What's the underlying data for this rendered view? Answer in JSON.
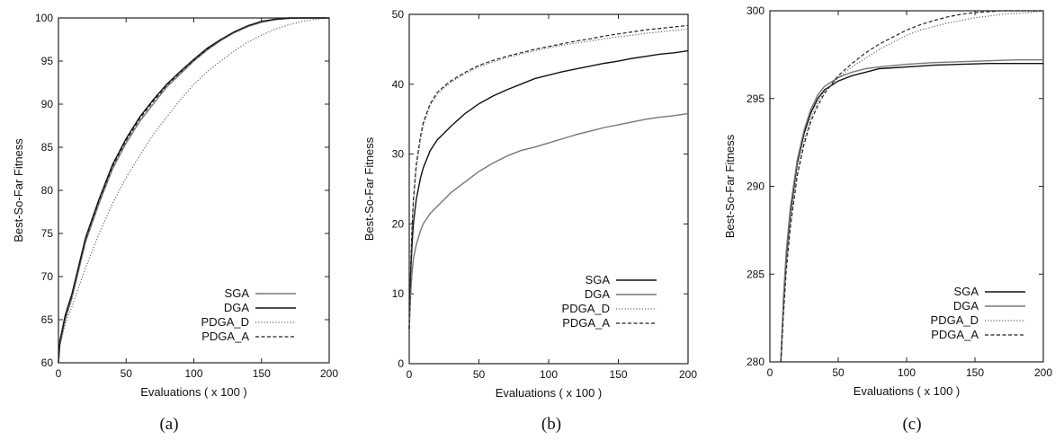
{
  "chart_data": [
    {
      "type": "line",
      "panel": "(a)",
      "xlabel": "Evaluations ( x 100 )",
      "ylabel": "Best-So-Far Fitness",
      "xlim": [
        0,
        200
      ],
      "ylim": [
        60,
        100
      ],
      "xticks": [
        0,
        50,
        100,
        150,
        200
      ],
      "yticks": [
        60,
        65,
        70,
        75,
        80,
        85,
        90,
        95,
        100
      ],
      "legend": "bottom-right",
      "series": [
        {
          "name": "SGA",
          "style": "solid",
          "color": "#777777",
          "x": [
            0,
            1,
            5,
            10,
            20,
            30,
            40,
            50,
            60,
            70,
            80,
            90,
            100,
            110,
            120,
            130,
            140,
            150,
            160,
            170,
            180,
            190,
            200
          ],
          "y": [
            60,
            62,
            65,
            67.5,
            74,
            78.5,
            82.5,
            85.5,
            88,
            90,
            92,
            93.5,
            95,
            96.3,
            97.4,
            98.3,
            99,
            99.5,
            99.8,
            99.95,
            100,
            100,
            100
          ]
        },
        {
          "name": "DGA",
          "style": "solid",
          "color": "#111111",
          "x": [
            0,
            1,
            5,
            10,
            20,
            30,
            40,
            50,
            60,
            70,
            80,
            90,
            100,
            110,
            120,
            130,
            140,
            150,
            160,
            170,
            180,
            190,
            200
          ],
          "y": [
            60,
            62.5,
            65.5,
            68,
            74.5,
            79,
            83,
            86,
            88.5,
            90.5,
            92.3,
            93.8,
            95.2,
            96.5,
            97.5,
            98.4,
            99.1,
            99.6,
            99.85,
            100,
            100,
            100,
            100
          ]
        },
        {
          "name": "PDGA_D",
          "style": "dotted",
          "color": "#666666",
          "x": [
            0,
            1,
            5,
            10,
            20,
            30,
            40,
            50,
            60,
            70,
            80,
            90,
            100,
            110,
            120,
            130,
            140,
            150,
            160,
            170,
            180,
            190,
            200
          ],
          "y": [
            60,
            62,
            64.5,
            66.5,
            71,
            75,
            78.5,
            81.5,
            84,
            86.5,
            88.5,
            90.5,
            92.3,
            93.8,
            95,
            96.2,
            97.2,
            98,
            98.7,
            99.2,
            99.6,
            99.85,
            100
          ]
        },
        {
          "name": "PDGA_A",
          "style": "dashed",
          "color": "#222222",
          "x": [
            0,
            1,
            5,
            10,
            20,
            30,
            40,
            50,
            60,
            70,
            80,
            90,
            100,
            110,
            120,
            130,
            140,
            150,
            160,
            170,
            180,
            190,
            200
          ],
          "y": [
            60,
            62.3,
            65.3,
            67.8,
            74.3,
            78.8,
            82.8,
            85.8,
            88.3,
            90.3,
            92.2,
            93.7,
            95.1,
            96.4,
            97.5,
            98.4,
            99.1,
            99.6,
            99.85,
            99.95,
            100,
            100,
            100
          ]
        }
      ]
    },
    {
      "type": "line",
      "panel": "(b)",
      "xlabel": "Evaluations ( x 100 )",
      "ylabel": "Best-So-Far Fitness",
      "xlim": [
        0,
        200
      ],
      "ylim": [
        0,
        50
      ],
      "xticks": [
        0,
        50,
        100,
        150,
        200
      ],
      "yticks": [
        0,
        10,
        20,
        30,
        40,
        50
      ],
      "legend": "bottom-right",
      "series": [
        {
          "name": "SGA",
          "style": "solid",
          "color": "#111111",
          "x": [
            0,
            1,
            2,
            3,
            5,
            8,
            10,
            15,
            20,
            25,
            30,
            40,
            50,
            60,
            70,
            80,
            90,
            100,
            110,
            120,
            130,
            140,
            150,
            160,
            170,
            180,
            190,
            200
          ],
          "y": [
            5,
            13,
            17,
            20,
            23.5,
            26.5,
            28,
            30.5,
            32,
            33,
            34,
            35.8,
            37.2,
            38.3,
            39.2,
            40,
            40.8,
            41.3,
            41.8,
            42.2,
            42.6,
            43,
            43.3,
            43.7,
            44,
            44.3,
            44.5,
            44.8
          ]
        },
        {
          "name": "DGA",
          "style": "solid",
          "color": "#777777",
          "x": [
            0,
            1,
            2,
            3,
            5,
            8,
            10,
            15,
            20,
            25,
            30,
            40,
            50,
            60,
            70,
            80,
            90,
            100,
            110,
            120,
            130,
            140,
            150,
            160,
            170,
            180,
            190,
            200
          ],
          "y": [
            5,
            10,
            13,
            15,
            17,
            19,
            20,
            21.5,
            22.5,
            23.5,
            24.5,
            26,
            27.5,
            28.7,
            29.7,
            30.5,
            31,
            31.6,
            32.2,
            32.8,
            33.3,
            33.8,
            34.2,
            34.6,
            35,
            35.3,
            35.5,
            35.8
          ]
        },
        {
          "name": "PDGA_D",
          "style": "dotted",
          "color": "#666666",
          "x": [
            0,
            1,
            2,
            3,
            5,
            8,
            10,
            15,
            20,
            25,
            30,
            40,
            50,
            60,
            70,
            80,
            90,
            100,
            110,
            120,
            130,
            140,
            150,
            160,
            170,
            180,
            190,
            200
          ],
          "y": [
            5,
            14,
            19,
            23,
            28,
            32,
            34,
            37,
            38.5,
            39.5,
            40.3,
            41.5,
            42.5,
            43.2,
            43.8,
            44.3,
            44.8,
            45.2,
            45.6,
            45.9,
            46.2,
            46.5,
            46.8,
            47,
            47.3,
            47.5,
            47.7,
            47.9
          ]
        },
        {
          "name": "PDGA_A",
          "style": "dashed",
          "color": "#222222",
          "x": [
            0,
            1,
            2,
            3,
            5,
            8,
            10,
            15,
            20,
            25,
            30,
            40,
            50,
            60,
            70,
            80,
            90,
            100,
            110,
            120,
            130,
            140,
            150,
            160,
            170,
            180,
            190,
            200
          ],
          "y": [
            5,
            14,
            19.5,
            23.5,
            28.5,
            32.5,
            34.5,
            37.2,
            38.8,
            39.7,
            40.5,
            41.7,
            42.7,
            43.4,
            44,
            44.5,
            45,
            45.4,
            45.8,
            46.2,
            46.5,
            46.9,
            47.2,
            47.5,
            47.8,
            48,
            48.2,
            48.4
          ]
        }
      ]
    },
    {
      "type": "line",
      "panel": "(c)",
      "xlabel": "Evaluations ( x 100 )",
      "ylabel": "Best-So-Far Fitness",
      "xlim": [
        0,
        200
      ],
      "ylim": [
        280,
        300
      ],
      "xticks": [
        0,
        50,
        100,
        150,
        200
      ],
      "yticks": [
        280,
        285,
        290,
        295,
        300
      ],
      "legend": "bottom-right",
      "series": [
        {
          "name": "SGA",
          "style": "solid",
          "color": "#111111",
          "x": [
            8,
            10,
            12,
            15,
            20,
            25,
            30,
            35,
            40,
            50,
            60,
            70,
            80,
            100,
            120,
            140,
            160,
            180,
            200
          ],
          "y": [
            280,
            283.5,
            286,
            288.5,
            291.3,
            293,
            294.2,
            295,
            295.5,
            296,
            296.3,
            296.5,
            296.7,
            296.8,
            296.9,
            296.95,
            297,
            297,
            297
          ]
        },
        {
          "name": "DGA",
          "style": "solid",
          "color": "#777777",
          "x": [
            8,
            10,
            12,
            15,
            20,
            25,
            30,
            35,
            40,
            50,
            60,
            70,
            80,
            100,
            120,
            140,
            160,
            180,
            200
          ],
          "y": [
            280,
            283.8,
            286.3,
            288.8,
            291.5,
            293.2,
            294.4,
            295.2,
            295.7,
            296.2,
            296.5,
            296.7,
            296.8,
            296.95,
            297.05,
            297.1,
            297.15,
            297.2,
            297.2
          ]
        },
        {
          "name": "PDGA_D",
          "style": "dotted",
          "color": "#666666",
          "x": [
            8,
            10,
            12,
            15,
            20,
            25,
            30,
            35,
            40,
            50,
            60,
            70,
            80,
            90,
            100,
            110,
            120,
            130,
            140,
            150,
            160,
            170,
            180,
            190,
            200
          ],
          "y": [
            280,
            283,
            285.5,
            288,
            290.8,
            292.6,
            293.9,
            294.8,
            295.4,
            296.2,
            296.8,
            297.3,
            297.8,
            298.2,
            298.6,
            298.9,
            299.1,
            299.3,
            299.45,
            299.6,
            299.7,
            299.8,
            299.85,
            299.9,
            300
          ]
        },
        {
          "name": "PDGA_A",
          "style": "dashed",
          "color": "#222222",
          "x": [
            8,
            10,
            12,
            15,
            20,
            25,
            30,
            35,
            40,
            50,
            60,
            70,
            80,
            90,
            100,
            110,
            120,
            130,
            140,
            150,
            160,
            170,
            180,
            190,
            200
          ],
          "y": [
            280,
            282.8,
            285.2,
            287.7,
            290.6,
            292.4,
            293.7,
            294.6,
            295.3,
            296.3,
            297,
            297.6,
            298.1,
            298.5,
            298.9,
            299.2,
            299.45,
            299.65,
            299.8,
            299.9,
            299.95,
            300,
            300,
            300,
            300
          ]
        }
      ]
    }
  ]
}
